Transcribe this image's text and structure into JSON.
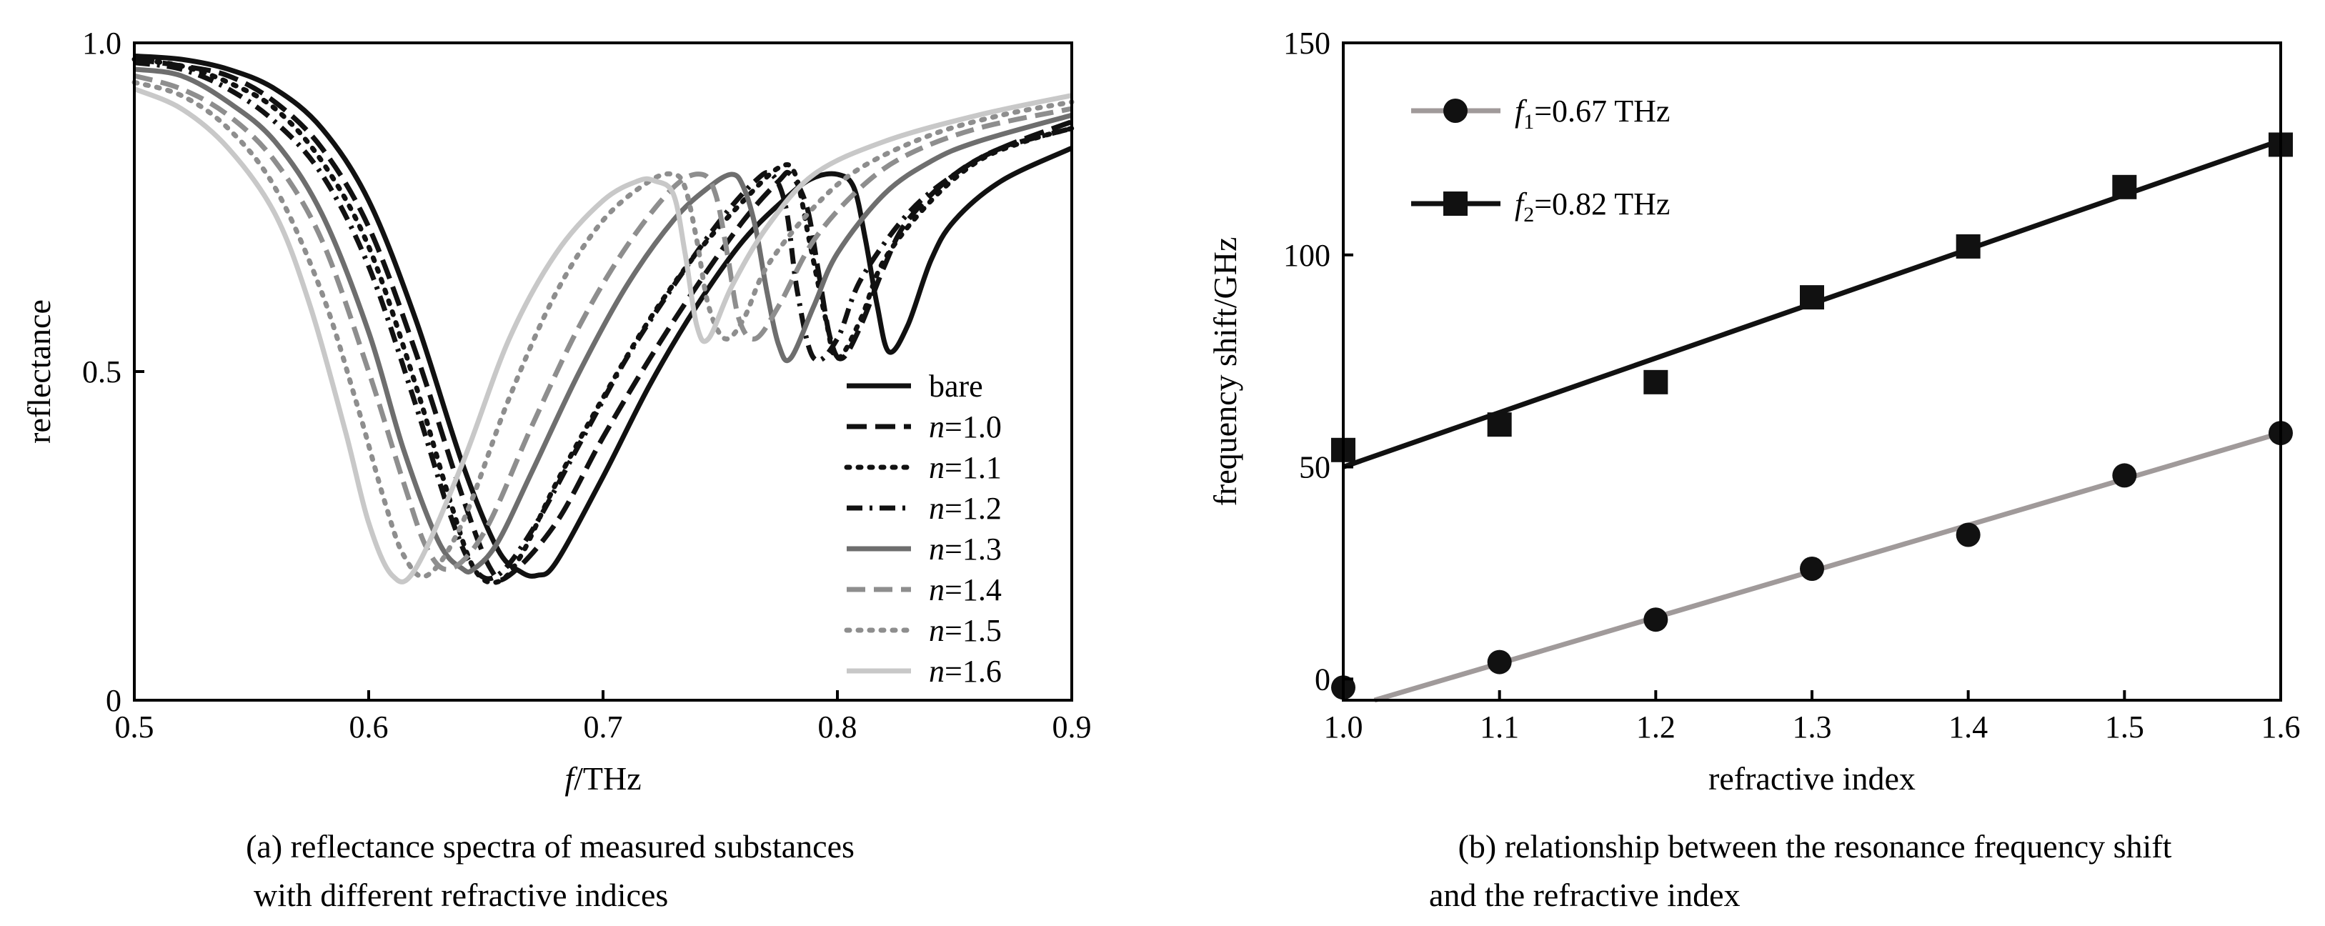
{
  "chart_data": [
    {
      "id": "a",
      "type": "line",
      "xlabel_italic": "f",
      "xlabel_rest": "/THz",
      "ylabel": "reflectance",
      "xlim": [
        0.5,
        0.9
      ],
      "ylim": [
        0,
        1.0
      ],
      "xticks": [
        "0.5",
        "0.6",
        "0.7",
        "0.8",
        "0.9"
      ],
      "xtick_values": [
        0.5,
        0.6,
        0.7,
        0.8,
        0.9
      ],
      "yticks": [
        "0",
        "0.5",
        "1.0"
      ],
      "ytick_values": [
        0,
        0.5,
        1.0
      ],
      "legend_position": "lower-right",
      "caption_line1": "(a) reflectance spectra of measured substances",
      "caption_line2": "with different refractive indices",
      "series": [
        {
          "label_plain": "bare",
          "label_italic": "",
          "label_rest": "",
          "color": "#111111",
          "dash": "solid",
          "x": [
            0.5,
            0.52,
            0.54,
            0.56,
            0.58,
            0.6,
            0.62,
            0.64,
            0.655,
            0.665,
            0.672,
            0.68,
            0.7,
            0.72,
            0.74,
            0.76,
            0.78,
            0.79,
            0.8,
            0.807,
            0.812,
            0.817,
            0.822,
            0.83,
            0.84,
            0.85,
            0.87,
            0.9
          ],
          "y": [
            0.98,
            0.975,
            0.96,
            0.93,
            0.87,
            0.76,
            0.58,
            0.36,
            0.23,
            0.195,
            0.19,
            0.21,
            0.34,
            0.48,
            0.6,
            0.7,
            0.77,
            0.795,
            0.8,
            0.78,
            0.7,
            0.6,
            0.53,
            0.57,
            0.67,
            0.73,
            0.79,
            0.84
          ]
        },
        {
          "label_plain": "",
          "label_italic": "n",
          "label_rest": "=1.0",
          "color": "#111111",
          "dash": "28 12",
          "x": [
            0.5,
            0.52,
            0.54,
            0.56,
            0.58,
            0.6,
            0.62,
            0.64,
            0.652,
            0.66,
            0.68,
            0.7,
            0.72,
            0.74,
            0.76,
            0.775,
            0.78,
            0.787,
            0.792,
            0.797,
            0.802,
            0.81,
            0.82,
            0.83,
            0.85,
            0.87,
            0.9
          ],
          "y": [
            0.975,
            0.965,
            0.95,
            0.91,
            0.84,
            0.72,
            0.53,
            0.31,
            0.2,
            0.19,
            0.27,
            0.4,
            0.52,
            0.63,
            0.73,
            0.79,
            0.8,
            0.75,
            0.65,
            0.55,
            0.52,
            0.57,
            0.66,
            0.73,
            0.8,
            0.84,
            0.88
          ]
        },
        {
          "label_plain": "",
          "label_italic": "n",
          "label_rest": "=1.1",
          "color": "#111111",
          "dash": "4 12",
          "x": [
            0.5,
            0.52,
            0.54,
            0.56,
            0.58,
            0.6,
            0.62,
            0.635,
            0.645,
            0.655,
            0.665,
            0.68,
            0.7,
            0.72,
            0.74,
            0.76,
            0.775,
            0.782,
            0.788,
            0.795,
            0.8,
            0.81,
            0.82,
            0.84,
            0.86,
            0.88,
            0.9
          ],
          "y": [
            0.975,
            0.965,
            0.94,
            0.9,
            0.82,
            0.69,
            0.48,
            0.3,
            0.2,
            0.18,
            0.22,
            0.33,
            0.46,
            0.58,
            0.68,
            0.76,
            0.81,
            0.8,
            0.7,
            0.58,
            0.52,
            0.58,
            0.67,
            0.76,
            0.82,
            0.85,
            0.87
          ]
        },
        {
          "label_plain": "",
          "label_italic": "n",
          "label_rest": "=1.2",
          "color": "#111111",
          "dash": "22 10 4 10",
          "x": [
            0.5,
            0.52,
            0.54,
            0.56,
            0.58,
            0.6,
            0.62,
            0.635,
            0.645,
            0.655,
            0.67,
            0.69,
            0.71,
            0.73,
            0.75,
            0.765,
            0.772,
            0.778,
            0.783,
            0.79,
            0.8,
            0.81,
            0.83,
            0.85,
            0.87,
            0.9
          ],
          "y": [
            0.97,
            0.96,
            0.93,
            0.88,
            0.8,
            0.66,
            0.45,
            0.28,
            0.2,
            0.19,
            0.26,
            0.39,
            0.52,
            0.63,
            0.73,
            0.79,
            0.8,
            0.75,
            0.62,
            0.52,
            0.55,
            0.64,
            0.74,
            0.8,
            0.84,
            0.87
          ]
        },
        {
          "label_plain": "",
          "label_italic": "n",
          "label_rest": "=1.3",
          "color": "#6e6e6e",
          "dash": "solid",
          "x": [
            0.5,
            0.52,
            0.54,
            0.56,
            0.58,
            0.6,
            0.615,
            0.63,
            0.64,
            0.645,
            0.655,
            0.67,
            0.69,
            0.71,
            0.73,
            0.745,
            0.755,
            0.76,
            0.765,
            0.77,
            0.775,
            0.78,
            0.79,
            0.8,
            0.82,
            0.84,
            0.86,
            0.9
          ],
          "y": [
            0.96,
            0.95,
            0.91,
            0.85,
            0.74,
            0.56,
            0.38,
            0.24,
            0.2,
            0.2,
            0.24,
            0.35,
            0.5,
            0.63,
            0.73,
            0.78,
            0.8,
            0.78,
            0.72,
            0.62,
            0.54,
            0.52,
            0.6,
            0.68,
            0.77,
            0.82,
            0.85,
            0.89
          ]
        },
        {
          "label_plain": "",
          "label_italic": "n",
          "label_rest": "=1.4",
          "color": "#8e8e8e",
          "dash": "26 12",
          "x": [
            0.5,
            0.52,
            0.54,
            0.56,
            0.58,
            0.6,
            0.615,
            0.625,
            0.635,
            0.65,
            0.67,
            0.69,
            0.71,
            0.73,
            0.742,
            0.748,
            0.753,
            0.758,
            0.765,
            0.775,
            0.79,
            0.81,
            0.83,
            0.86,
            0.9
          ],
          "y": [
            0.95,
            0.93,
            0.89,
            0.82,
            0.7,
            0.5,
            0.33,
            0.23,
            0.2,
            0.26,
            0.42,
            0.57,
            0.69,
            0.78,
            0.8,
            0.77,
            0.68,
            0.58,
            0.55,
            0.6,
            0.7,
            0.78,
            0.83,
            0.87,
            0.9
          ]
        },
        {
          "label_plain": "",
          "label_italic": "n",
          "label_rest": "=1.5",
          "color": "#8e8e8e",
          "dash": "4 12",
          "x": [
            0.5,
            0.52,
            0.54,
            0.56,
            0.58,
            0.595,
            0.607,
            0.615,
            0.625,
            0.64,
            0.66,
            0.68,
            0.7,
            0.72,
            0.73,
            0.735,
            0.74,
            0.745,
            0.752,
            0.76,
            0.77,
            0.79,
            0.81,
            0.84,
            0.87,
            0.9
          ],
          "y": [
            0.94,
            0.92,
            0.87,
            0.78,
            0.62,
            0.45,
            0.3,
            0.22,
            0.19,
            0.27,
            0.46,
            0.62,
            0.73,
            0.79,
            0.8,
            0.78,
            0.7,
            0.6,
            0.55,
            0.58,
            0.66,
            0.75,
            0.81,
            0.86,
            0.89,
            0.91
          ]
        },
        {
          "label_plain": "",
          "label_italic": "n",
          "label_rest": "=1.6",
          "color": "#c8c8c8",
          "dash": "solid",
          "x": [
            0.5,
            0.52,
            0.54,
            0.56,
            0.575,
            0.59,
            0.6,
            0.61,
            0.62,
            0.64,
            0.66,
            0.68,
            0.7,
            0.715,
            0.722,
            0.73,
            0.735,
            0.74,
            0.745,
            0.755,
            0.77,
            0.79,
            0.82,
            0.86,
            0.9
          ],
          "y": [
            0.93,
            0.9,
            0.84,
            0.74,
            0.6,
            0.41,
            0.27,
            0.19,
            0.2,
            0.36,
            0.55,
            0.68,
            0.76,
            0.79,
            0.79,
            0.77,
            0.68,
            0.57,
            0.55,
            0.63,
            0.72,
            0.8,
            0.85,
            0.89,
            0.92
          ]
        }
      ]
    },
    {
      "id": "b",
      "type": "scatter",
      "xlabel": "refractive index",
      "ylabel": "frequency shift/GHz",
      "xlim": [
        1.0,
        1.6
      ],
      "ylim": [
        -5,
        150
      ],
      "xticks": [
        "1.0",
        "1.1",
        "1.2",
        "1.3",
        "1.4",
        "1.5",
        "1.6"
      ],
      "xtick_values": [
        1.0,
        1.1,
        1.2,
        1.3,
        1.4,
        1.5,
        1.6
      ],
      "yticks": [
        "0",
        "50",
        "100",
        "150"
      ],
      "ytick_values": [
        0,
        50,
        100,
        150
      ],
      "legend_position": "top-left",
      "caption_line1": "(b) relationship between the resonance frequency shift",
      "caption_line2": "and the refractive index",
      "series": [
        {
          "label_italic": "f",
          "label_sub": "1",
          "label_rest": "=0.67 THz",
          "marker": "circle",
          "color": "#111111",
          "line_color": "#a09a9a",
          "x": [
            1.0,
            1.1,
            1.2,
            1.3,
            1.4,
            1.5,
            1.6
          ],
          "y": [
            -2,
            4,
            14,
            26,
            34,
            48,
            58
          ],
          "fit": [
            [
              1.02,
              -5
            ],
            [
              1.6,
              58
            ]
          ]
        },
        {
          "label_italic": "f",
          "label_sub": "2",
          "label_rest": "=0.82 THz",
          "marker": "square",
          "color": "#111111",
          "line_color": "#111111",
          "x": [
            1.0,
            1.1,
            1.2,
            1.3,
            1.4,
            1.5,
            1.6
          ],
          "y": [
            54,
            60,
            70,
            90,
            102,
            116,
            126
          ],
          "fit": [
            [
              1.0,
              50
            ],
            [
              1.6,
              127
            ]
          ]
        }
      ]
    }
  ]
}
